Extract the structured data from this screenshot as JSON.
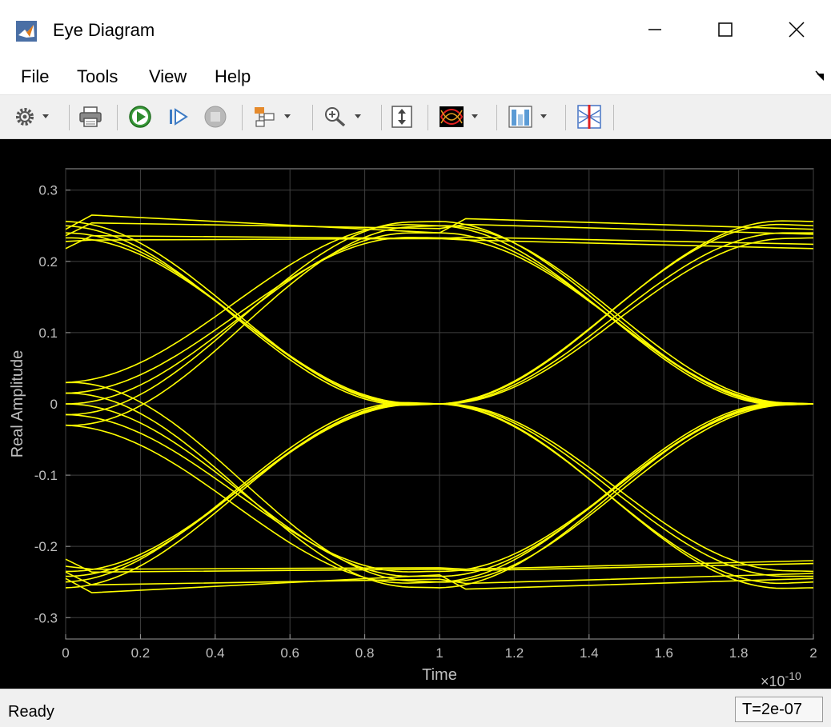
{
  "window": {
    "title": "Eye Diagram",
    "icon": "matlab-logo-icon"
  },
  "menu": {
    "items": [
      "File",
      "Tools",
      "View",
      "Help"
    ]
  },
  "toolbar": {
    "icons": [
      "gear-icon",
      "print-icon",
      "run-icon",
      "step-forward-icon",
      "stop-icon",
      "block-diagram-icon",
      "zoom-in-icon",
      "scale-axes-icon",
      "eye-measurement-icon",
      "histogram-icon",
      "cursor-icon"
    ]
  },
  "status": {
    "text": "Ready",
    "time": "T=2e-07"
  },
  "colors": {
    "plot_background": "#000000",
    "trace": "#ffff00",
    "grid": "#404040",
    "axis_text": "#bfbfbf"
  },
  "chart_data": {
    "type": "line",
    "title": "",
    "xlabel": "Time",
    "ylabel": "Real Amplitude",
    "x_exponent_label": "×10",
    "x_exponent_power": "-10",
    "xlim": [
      0,
      2
    ],
    "ylim": [
      -0.33,
      0.33
    ],
    "x_ticks": [
      "0",
      "0.2",
      "0.4",
      "0.6",
      "0.8",
      "1",
      "1.2",
      "1.4",
      "1.6",
      "1.8",
      "2"
    ],
    "y_ticks": [
      "0.3",
      "0.2",
      "0.1",
      "0",
      "-0.1",
      "-0.2",
      "-0.3"
    ],
    "grid": true,
    "x_unit_scale": 1e-10,
    "trace_color": "#ffff00",
    "traces": {
      "x": [
        0,
        0.07,
        1,
        1.07,
        2
      ],
      "high_high": [
        [
          0.245,
          0.265,
          0.24,
          0.26,
          0.245
        ],
        [
          0.236,
          0.254,
          0.246,
          0.252,
          0.238
        ],
        [
          0.218,
          0.236,
          0.232,
          0.234,
          0.224
        ],
        [
          0.228,
          0.23,
          0.232,
          0.23,
          0.218
        ]
      ],
      "low_low": [
        [
          -0.245,
          -0.265,
          -0.24,
          -0.26,
          -0.245
        ],
        [
          -0.236,
          -0.254,
          -0.246,
          -0.252,
          -0.238
        ],
        [
          -0.218,
          -0.236,
          -0.232,
          -0.234,
          -0.224
        ],
        [
          -0.228,
          -0.232,
          -0.23,
          -0.232,
          -0.22
        ]
      ],
      "rising_start": [
        -0.03,
        -0.015,
        0.0,
        0.015,
        0.03
      ],
      "rising_top": [
        0.25,
        0.256,
        0.24,
        0.233
      ],
      "falling_bottom": [
        -0.25,
        -0.258,
        -0.242,
        -0.235
      ],
      "crossing_left": 0,
      "crossing_mid": 1,
      "crossing_right": 2
    }
  }
}
